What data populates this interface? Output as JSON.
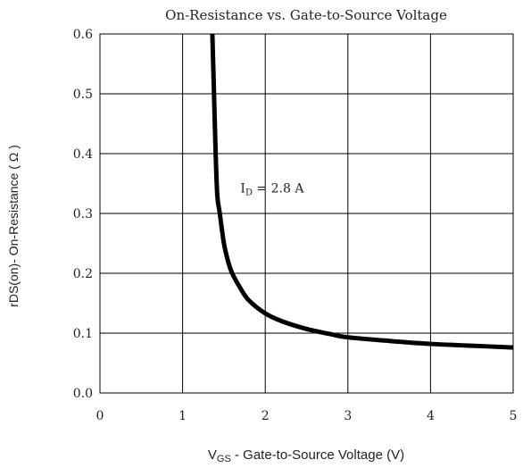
{
  "chart_data": {
    "type": "line",
    "title": "On-Resistance vs. Gate-to-Source Voltage",
    "xlabel": {
      "prefix": "V",
      "subscript": "GS",
      "rest": " - Gate-to-Source Voltage (V)"
    },
    "ylabel": "rDS(on)- On-Resistance ( Ω )",
    "xlim": [
      0,
      5
    ],
    "ylim": [
      0,
      0.6
    ],
    "xticks": [
      "0",
      "1",
      "2",
      "3",
      "4",
      "5"
    ],
    "yticks": [
      "0.0",
      "0.1",
      "0.2",
      "0.3",
      "0.4",
      "0.5",
      "0.6"
    ],
    "grid": true,
    "annotation": {
      "prefix": "I",
      "subscript": "D",
      "rest": " = 2.8 A",
      "x": 1.7,
      "y": 0.335
    },
    "series": [
      {
        "x": [
          1.36,
          1.38,
          1.4,
          1.42,
          1.45,
          1.5,
          1.55,
          1.6,
          1.7,
          1.8,
          2.0,
          2.2,
          2.5,
          2.8,
          3.0,
          3.5,
          4.0,
          4.5,
          5.0
        ],
        "y": [
          0.6,
          0.5,
          0.4,
          0.33,
          0.3,
          0.25,
          0.22,
          0.2,
          0.175,
          0.155,
          0.133,
          0.12,
          0.107,
          0.098,
          0.093,
          0.087,
          0.082,
          0.079,
          0.076
        ]
      }
    ]
  }
}
